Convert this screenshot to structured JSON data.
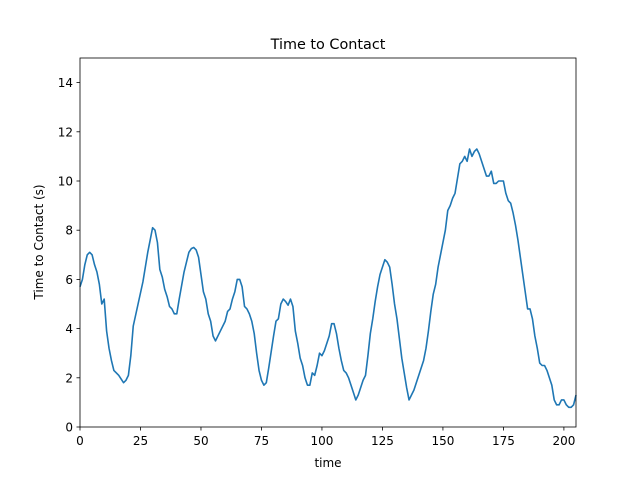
{
  "chart_data": {
    "type": "line",
    "title": "Time to Contact",
    "xlabel": "time",
    "ylabel": "Time to Contact (s)",
    "x": [
      0,
      1,
      2,
      3,
      4,
      5,
      6,
      7,
      8,
      9,
      10,
      11,
      12,
      13,
      14,
      16,
      18,
      19,
      20,
      21,
      22,
      24,
      26,
      27,
      28,
      29,
      30,
      31,
      32,
      33,
      34,
      35,
      36,
      37,
      38,
      39,
      40,
      41,
      43,
      44,
      45,
      46,
      47,
      48,
      49,
      50,
      51,
      52,
      53,
      54,
      55,
      56,
      58,
      60,
      61,
      62,
      63,
      64,
      65,
      66,
      67,
      68,
      69,
      70,
      71,
      72,
      73,
      74,
      75,
      76,
      77,
      78,
      80,
      81,
      82,
      83,
      84,
      85,
      86,
      87,
      88,
      89,
      90,
      91,
      92,
      93,
      94,
      95,
      96,
      97,
      98,
      99,
      100,
      101,
      102,
      103,
      104,
      105,
      106,
      107,
      108,
      109,
      110,
      111,
      112,
      113,
      114,
      115,
      116,
      117,
      118,
      119,
      120,
      121,
      122,
      123,
      124,
      125,
      126,
      127,
      128,
      129,
      130,
      131,
      132,
      133,
      134,
      135,
      136,
      137,
      138,
      139,
      140,
      141,
      142,
      143,
      144,
      145,
      146,
      147,
      148,
      149,
      150,
      151,
      152,
      153,
      154,
      155,
      156,
      157,
      158,
      159,
      160,
      161,
      162,
      163,
      164,
      165,
      166,
      167,
      168,
      169,
      170,
      171,
      172,
      173,
      174,
      175,
      176,
      177,
      178,
      179,
      180,
      181,
      182,
      183,
      184,
      185,
      186,
      187,
      188,
      189,
      190,
      191,
      192,
      193,
      194,
      195,
      196,
      197,
      198,
      199,
      200,
      201,
      202,
      203,
      204,
      205
    ],
    "series": [
      {
        "name": "Time to Contact",
        "color": "#1f77b4",
        "values": [
          5.7,
          6.0,
          6.6,
          7.0,
          7.1,
          7.0,
          6.6,
          6.3,
          5.8,
          5.0,
          5.2,
          3.9,
          3.2,
          2.7,
          2.3,
          2.1,
          1.8,
          1.9,
          2.1,
          2.9,
          4.1,
          5.0,
          5.9,
          6.5,
          7.1,
          7.6,
          8.1,
          8.0,
          7.5,
          6.4,
          6.1,
          5.6,
          5.3,
          4.9,
          4.8,
          4.6,
          4.6,
          5.2,
          6.3,
          6.7,
          7.1,
          7.25,
          7.3,
          7.2,
          6.9,
          6.2,
          5.5,
          5.2,
          4.6,
          4.3,
          3.7,
          3.5,
          3.9,
          4.3,
          4.7,
          4.8,
          5.2,
          5.5,
          6.0,
          6.0,
          5.7,
          4.9,
          4.8,
          4.6,
          4.3,
          3.8,
          3.0,
          2.3,
          1.9,
          1.7,
          1.8,
          2.4,
          3.7,
          4.3,
          4.4,
          5.0,
          5.2,
          5.1,
          4.95,
          5.2,
          4.9,
          3.9,
          3.4,
          2.8,
          2.5,
          2.0,
          1.7,
          1.7,
          2.2,
          2.1,
          2.5,
          3.0,
          2.9,
          3.1,
          3.4,
          3.7,
          4.2,
          4.2,
          3.8,
          3.2,
          2.7,
          2.3,
          2.2,
          2.0,
          1.7,
          1.4,
          1.1,
          1.3,
          1.6,
          1.9,
          2.1,
          2.9,
          3.8,
          4.4,
          5.1,
          5.7,
          6.2,
          6.5,
          6.8,
          6.7,
          6.5,
          5.8,
          5.0,
          4.4,
          3.6,
          2.8,
          2.2,
          1.6,
          1.1,
          1.3,
          1.5,
          1.8,
          2.1,
          2.4,
          2.7,
          3.2,
          3.9,
          4.7,
          5.4,
          5.8,
          6.5,
          7.0,
          7.5,
          8.0,
          8.8,
          9.0,
          9.3,
          9.5,
          10.1,
          10.7,
          10.8,
          11.0,
          10.8,
          11.3,
          11.0,
          11.2,
          11.3,
          11.1,
          10.8,
          10.5,
          10.2,
          10.2,
          10.4,
          9.9,
          9.9,
          10.0,
          10.0,
          10.0,
          9.5,
          9.2,
          9.1,
          8.7,
          8.2,
          7.6,
          6.9,
          6.2,
          5.5,
          4.8,
          4.8,
          4.4,
          3.7,
          3.2,
          2.6,
          2.5,
          2.5,
          2.3,
          2.0,
          1.7,
          1.1,
          0.9,
          0.9,
          1.1,
          1.1,
          0.9,
          0.8,
          0.8,
          0.9,
          1.3
        ]
      }
    ],
    "xlim": [
      0,
      205
    ],
    "ylim": [
      0,
      15
    ],
    "xticks": [
      0,
      25,
      50,
      75,
      100,
      125,
      150,
      175,
      200
    ],
    "yticks": [
      0,
      2,
      4,
      6,
      8,
      10,
      12,
      14
    ]
  }
}
